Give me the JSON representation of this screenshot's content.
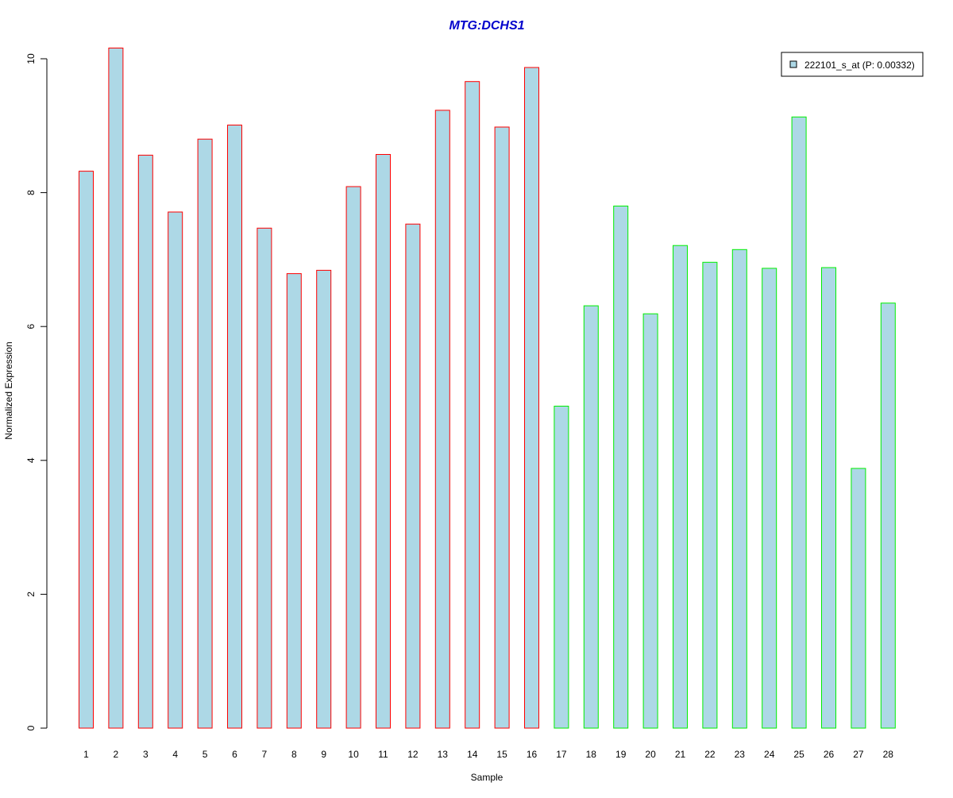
{
  "chart_data": {
    "type": "bar",
    "title": "MTG:DCHS1",
    "xlabel": "Sample",
    "ylabel": "Normalized Expression",
    "ylim": [
      0,
      10.2
    ],
    "yticks": [
      0,
      2,
      4,
      6,
      8,
      10
    ],
    "categories": [
      "1",
      "2",
      "3",
      "4",
      "5",
      "6",
      "7",
      "8",
      "9",
      "10",
      "11",
      "12",
      "13",
      "14",
      "15",
      "16",
      "17",
      "18",
      "19",
      "20",
      "21",
      "22",
      "23",
      "24",
      "25",
      "26",
      "27",
      "28"
    ],
    "series": [
      {
        "name": "222101_s_at (P: 0.00332)",
        "values": [
          8.32,
          10.16,
          8.56,
          7.71,
          8.8,
          9.01,
          7.47,
          6.79,
          6.84,
          8.09,
          8.57,
          7.53,
          9.23,
          9.66,
          8.98,
          9.87,
          4.81,
          6.31,
          7.8,
          6.19,
          7.21,
          6.96,
          7.15,
          6.87,
          9.13,
          6.88,
          3.88,
          6.35
        ]
      }
    ],
    "group_outline_colors": [
      "#ff0000",
      "#ff0000",
      "#ff0000",
      "#ff0000",
      "#ff0000",
      "#ff0000",
      "#ff0000",
      "#ff0000",
      "#ff0000",
      "#ff0000",
      "#ff0000",
      "#ff0000",
      "#ff0000",
      "#ff0000",
      "#ff0000",
      "#ff0000",
      "#00ee00",
      "#00ee00",
      "#00ee00",
      "#00ee00",
      "#00ee00",
      "#00ee00",
      "#00ee00",
      "#00ee00",
      "#00ee00",
      "#00ee00",
      "#00ee00",
      "#00ee00"
    ],
    "bar_fill": "#add8e6",
    "title_color": "#0000cc",
    "legend": {
      "position": "top-right",
      "label": "222101_s_at (P: 0.00332)"
    },
    "grid": false
  }
}
